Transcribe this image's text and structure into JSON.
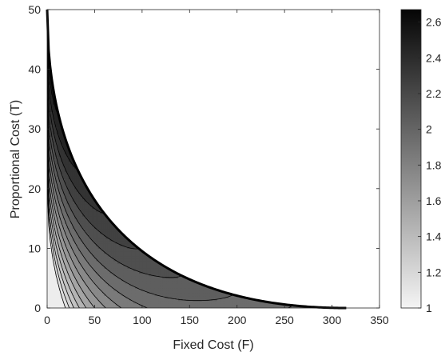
{
  "chart_data": {
    "type": "contour",
    "xlabel": "Fixed Cost (F)",
    "ylabel": "Proportional Cost (T)",
    "xlim": [
      0,
      350
    ],
    "ylim": [
      0,
      50
    ],
    "xticks": [
      0,
      50,
      100,
      150,
      200,
      250,
      300,
      350
    ],
    "yticks": [
      0,
      10,
      20,
      30,
      40,
      50
    ],
    "boundary": {
      "description_points": [
        [
          0,
          50
        ],
        [
          50,
          31
        ],
        [
          100,
          20
        ],
        [
          150,
          12
        ],
        [
          200,
          6.5
        ],
        [
          250,
          3
        ],
        [
          300,
          0.7
        ],
        [
          315,
          0
        ]
      ]
    },
    "contour_levels": [
      1.0,
      1.1,
      1.2,
      1.3,
      1.4,
      1.5,
      1.6,
      1.7,
      1.8,
      1.9,
      2.0,
      2.1,
      2.2,
      2.3,
      2.4,
      2.5,
      2.6,
      2.65
    ],
    "colorbar": {
      "min": 1.0,
      "max": 2.67,
      "ticks": [
        1,
        1.2,
        1.4,
        1.6,
        1.8,
        2,
        2.2,
        2.4,
        2.6
      ],
      "colormap": "gray-reversed",
      "low_color": "#f4f4f4",
      "high_color": "#050505"
    },
    "grid": false
  }
}
